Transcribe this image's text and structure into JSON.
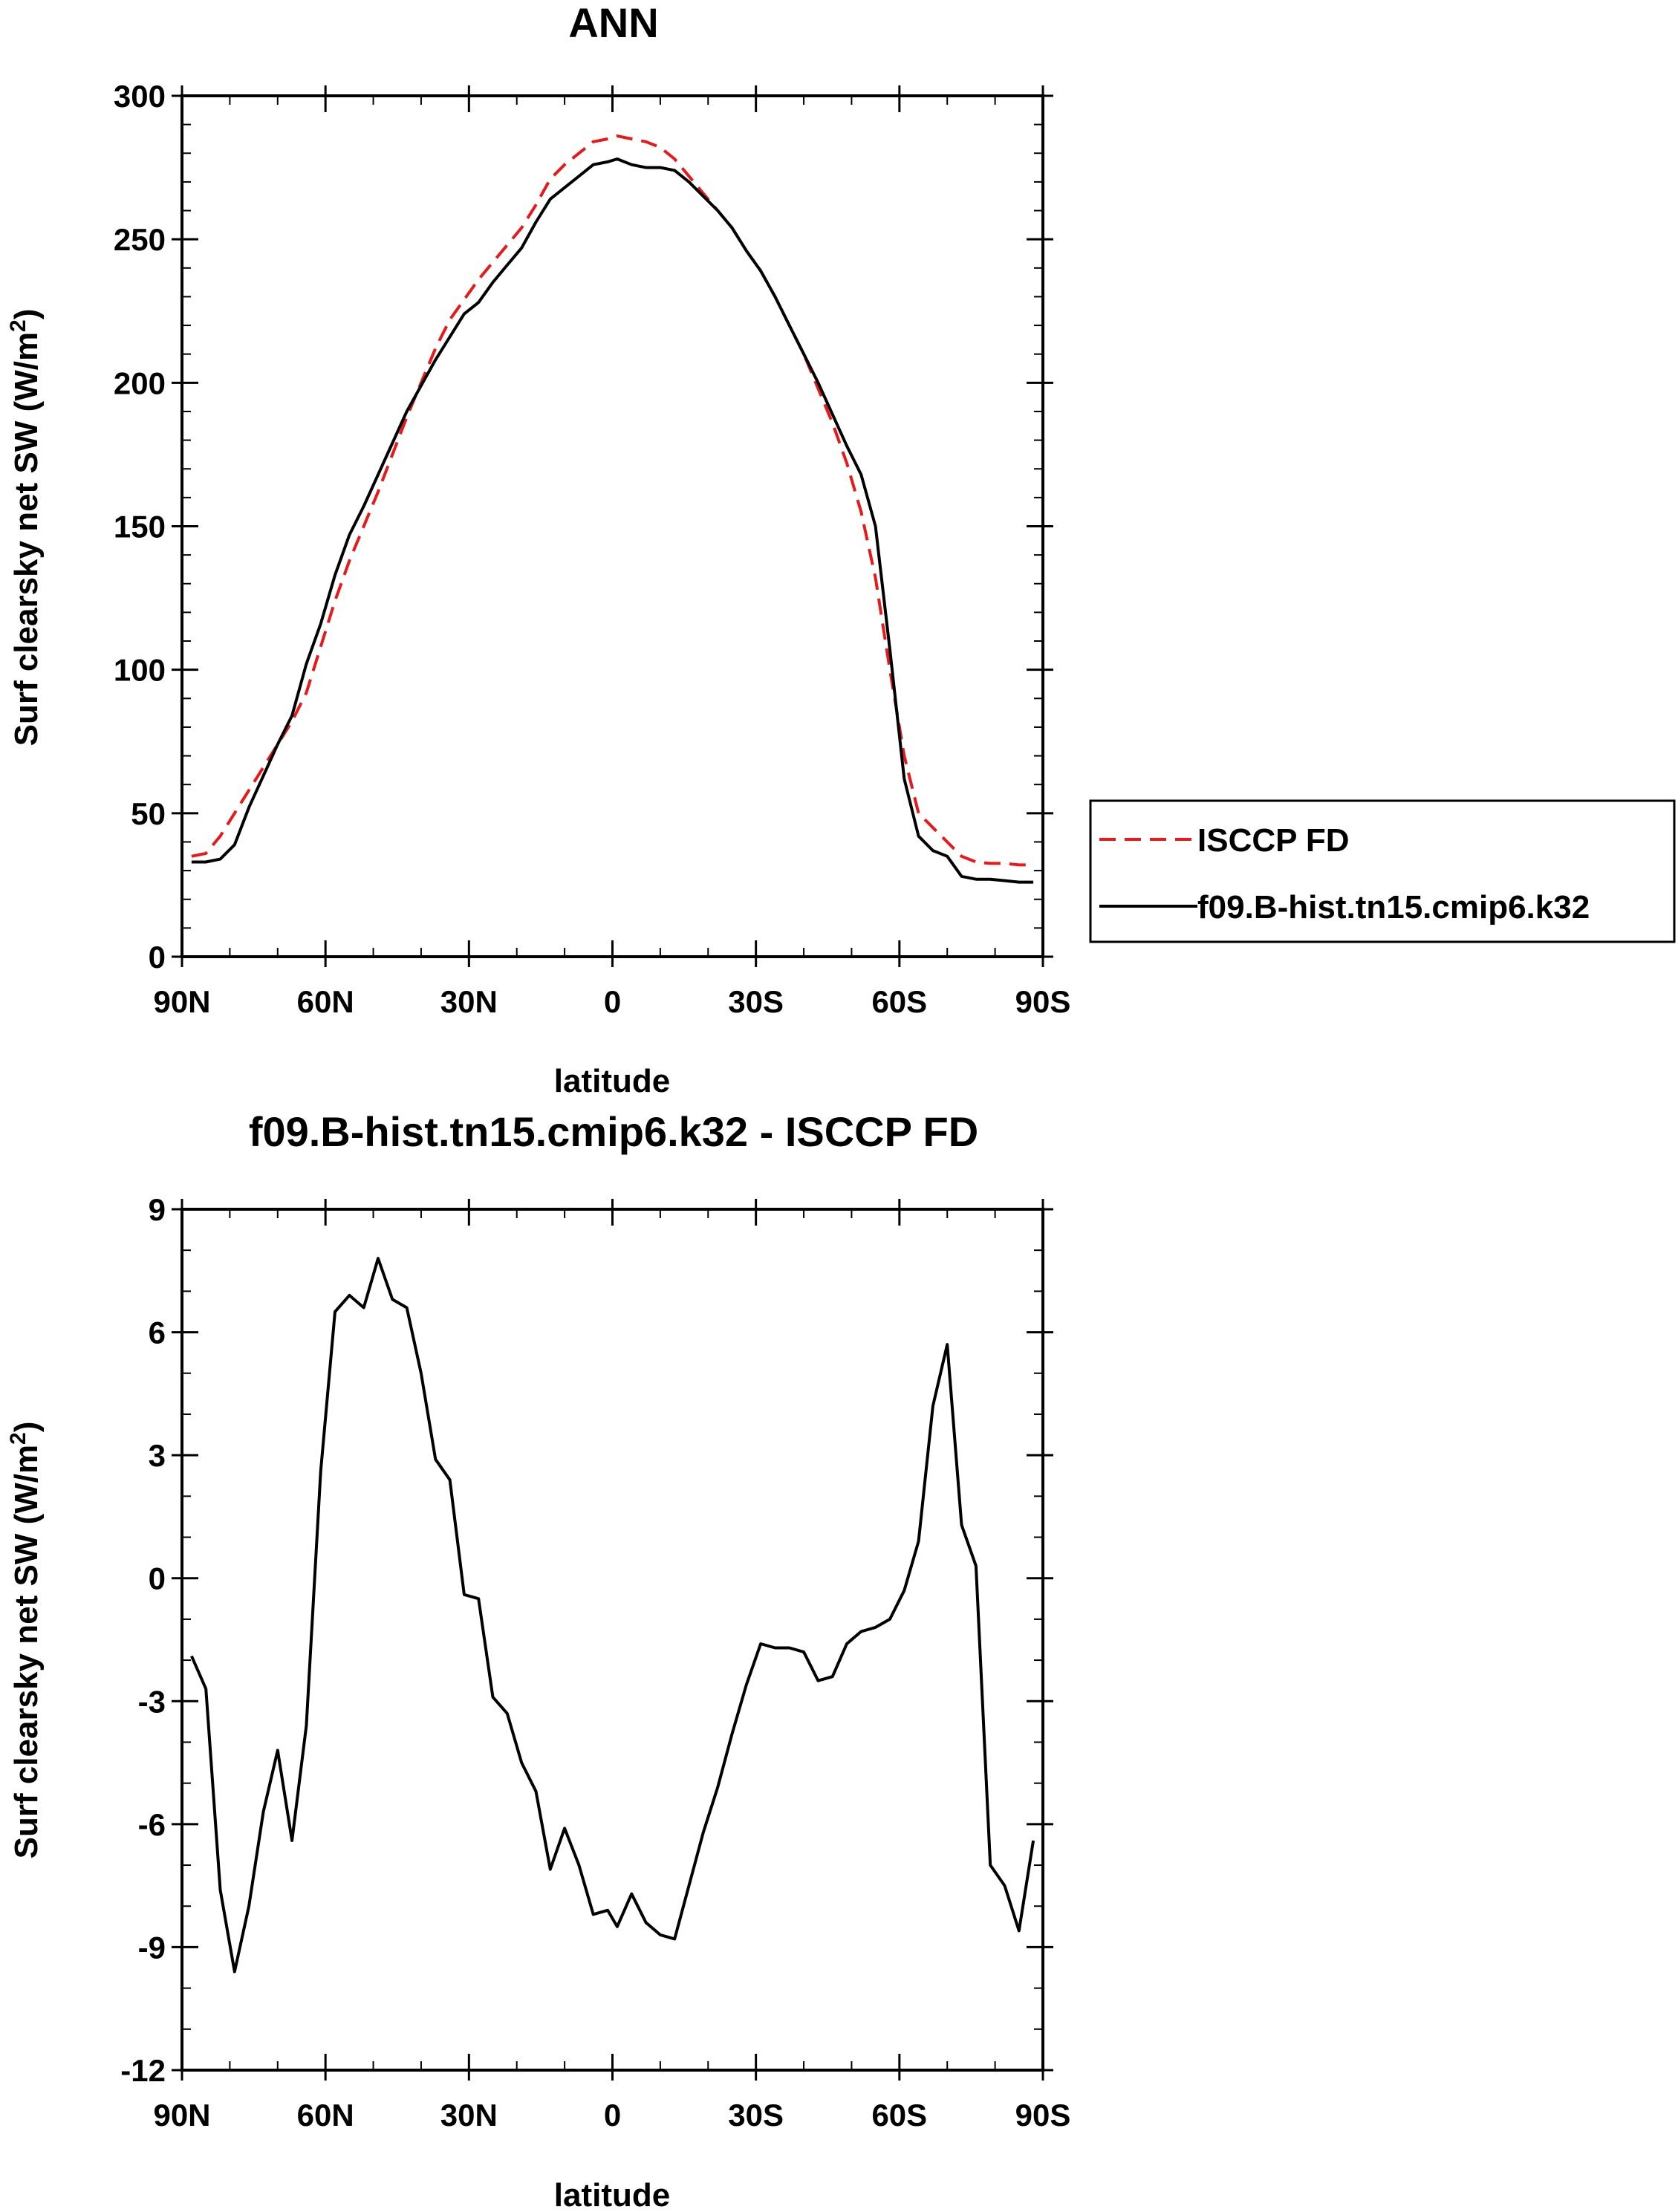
{
  "chart_data": [
    {
      "type": "line",
      "title": "ANN",
      "xlabel": "latitude",
      "ylabel_main": "Surf clearsky net SW (W/m",
      "ylabel_sup": "2",
      "ylabel_close": ")",
      "xlim": [
        -90,
        90
      ],
      "ylim": [
        0,
        300
      ],
      "yticks": [
        0,
        50,
        100,
        150,
        200,
        250,
        300
      ],
      "yminor": 10,
      "xtick_values": [
        -90,
        -60,
        -30,
        0,
        30,
        60,
        90
      ],
      "xtick_labels": [
        "90N",
        "60N",
        "30N",
        "0",
        "30S",
        "60S",
        "90S"
      ],
      "legend": {
        "position": "outside-right"
      },
      "series": [
        {
          "name": "ISCCP FD",
          "color": "#e8191a",
          "dash": "dashed",
          "x": [
            -88,
            -85,
            -82,
            -79,
            -76,
            -73,
            -70,
            -67,
            -64,
            -61,
            -58,
            -55,
            -52,
            -49,
            -46,
            -43,
            -40,
            -37,
            -34,
            -31,
            -28,
            -25,
            -22,
            -19,
            -16,
            -13,
            -10,
            -7,
            -4,
            -1,
            1,
            4,
            7,
            10,
            13,
            16,
            19,
            22,
            25,
            28,
            31,
            34,
            37,
            40,
            43,
            46,
            49,
            52,
            55,
            58,
            61,
            64,
            67,
            70,
            73,
            76,
            79,
            82,
            85,
            88
          ],
          "values": [
            35,
            36,
            42,
            50,
            58,
            66,
            74,
            82,
            92,
            108,
            124,
            138,
            150,
            162,
            175,
            188,
            200,
            212,
            222,
            229,
            236,
            242,
            248,
            254,
            262,
            271,
            276,
            280,
            284,
            285,
            286,
            285,
            284,
            282,
            278,
            272,
            266,
            260,
            254,
            246,
            239,
            230,
            220,
            210,
            198,
            186,
            172,
            155,
            132,
            100,
            70,
            50,
            45,
            40,
            35,
            33,
            32.5,
            32.5,
            32,
            32
          ]
        },
        {
          "name": "f09.B-hist.tn15.cmip6.k32",
          "color": "#000000",
          "dash": "solid",
          "x": [
            -88,
            -85,
            -82,
            -79,
            -76,
            -73,
            -70,
            -67,
            -64,
            -61,
            -58,
            -55,
            -52,
            -49,
            -46,
            -43,
            -40,
            -37,
            -34,
            -31,
            -28,
            -25,
            -22,
            -19,
            -16,
            -13,
            -10,
            -7,
            -4,
            -1,
            1,
            4,
            7,
            10,
            13,
            16,
            19,
            22,
            25,
            28,
            31,
            34,
            37,
            40,
            43,
            46,
            49,
            52,
            55,
            58,
            61,
            64,
            67,
            70,
            73,
            76,
            79,
            82,
            85,
            88
          ],
          "values": [
            33,
            33,
            34,
            39,
            52,
            63,
            74,
            84,
            102,
            116,
            133,
            147,
            157,
            168,
            179,
            190,
            199,
            208,
            216,
            224,
            228,
            235,
            241,
            247,
            256,
            264,
            268,
            272,
            276,
            277,
            278,
            276,
            275,
            275,
            274,
            270,
            265,
            260,
            254,
            246,
            239,
            230,
            220,
            210,
            200,
            189,
            178,
            168,
            150,
            107,
            62,
            42,
            37,
            35,
            28,
            27,
            27,
            26.5,
            26,
            26
          ]
        }
      ]
    },
    {
      "type": "line",
      "title": "f09.B-hist.tn15.cmip6.k32 - ISCCP FD",
      "xlabel": "latitude",
      "ylabel_main": "Surf clearsky net SW (W/m",
      "ylabel_sup": "2",
      "ylabel_close": ")",
      "xlim": [
        -90,
        90
      ],
      "ylim": [
        -12,
        9
      ],
      "yticks": [
        -12,
        -9,
        -6,
        -3,
        0,
        3,
        6,
        9
      ],
      "yminor": 1,
      "xtick_values": [
        -90,
        -60,
        -30,
        0,
        30,
        60,
        90
      ],
      "xtick_labels": [
        "90N",
        "60N",
        "30N",
        "0",
        "30S",
        "60S",
        "90S"
      ],
      "series": [
        {
          "name": "f09.B-hist.tn15.cmip6.k32 - ISCCP FD",
          "color": "#000000",
          "dash": "solid",
          "x": [
            -88,
            -85,
            -82,
            -79,
            -76,
            -73,
            -70,
            -67,
            -64,
            -61,
            -58,
            -55,
            -52,
            -49,
            -46,
            -43,
            -40,
            -37,
            -34,
            -31,
            -28,
            -25,
            -22,
            -19,
            -16,
            -13,
            -10,
            -7,
            -4,
            -1,
            1,
            4,
            7,
            10,
            13,
            16,
            19,
            22,
            25,
            28,
            31,
            34,
            37,
            40,
            43,
            46,
            49,
            52,
            55,
            58,
            61,
            64,
            67,
            70,
            73,
            76,
            79,
            82,
            85,
            88
          ],
          "values": [
            -1.9,
            -2.7,
            -7.6,
            -9.6,
            -8.0,
            -5.7,
            -4.2,
            -6.4,
            -3.6,
            2.6,
            6.5,
            6.9,
            6.6,
            7.8,
            6.8,
            6.6,
            5.0,
            2.9,
            2.4,
            -0.4,
            -0.5,
            -2.9,
            -3.3,
            -4.5,
            -5.2,
            -7.1,
            -6.1,
            -7.0,
            -8.2,
            -8.1,
            -8.5,
            -7.7,
            -8.4,
            -8.7,
            -8.8,
            -7.5,
            -6.2,
            -5.1,
            -3.8,
            -2.6,
            -1.6,
            -1.7,
            -1.7,
            -1.8,
            -2.5,
            -2.4,
            -1.6,
            -1.3,
            -1.2,
            -1.0,
            -0.3,
            0.9,
            4.2,
            5.7,
            1.3,
            0.3,
            -7.0,
            -7.5,
            -8.6,
            -6.4
          ]
        }
      ]
    }
  ]
}
